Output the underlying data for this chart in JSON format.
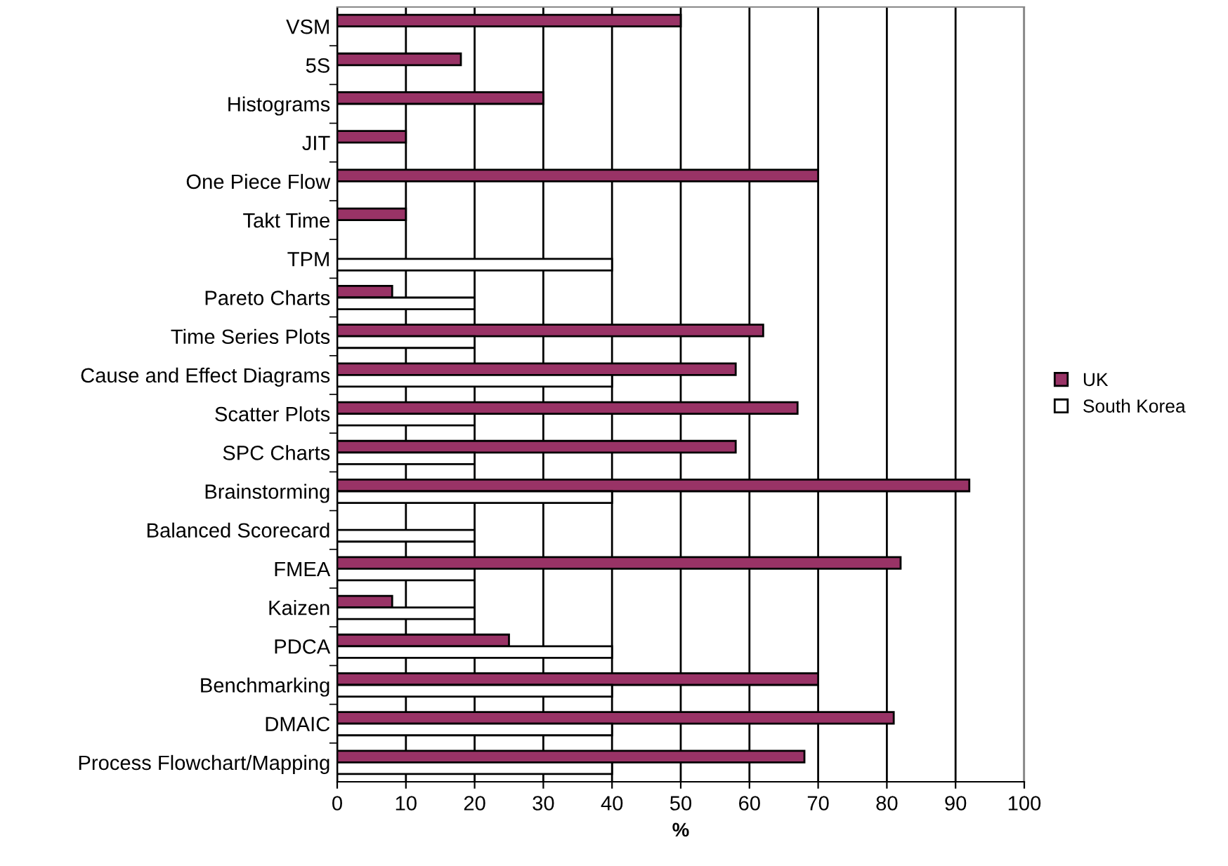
{
  "chart_data": {
    "type": "bar",
    "orientation": "horizontal",
    "xlabel": "%",
    "categories": [
      "VSM",
      "5S",
      "Histograms",
      "JIT",
      "One Piece Flow",
      "Takt Time",
      "TPM",
      "Pareto Charts",
      "Time Series Plots",
      "Cause and Effect Diagrams",
      "Scatter Plots",
      "SPC Charts",
      "Brainstorming",
      "Balanced Scorecard",
      "FMEA",
      "Kaizen",
      "PDCA",
      "Benchmarking",
      "DMAIC",
      "Process Flowchart/Mapping"
    ],
    "series": [
      {
        "name": "UK",
        "color": "#993366",
        "values": [
          50,
          18,
          30,
          10,
          70,
          10,
          null,
          8,
          62,
          58,
          67,
          58,
          92,
          null,
          82,
          8,
          25,
          70,
          81,
          68
        ]
      },
      {
        "name": "South Korea",
        "color": "#ffffff",
        "values": [
          null,
          null,
          null,
          null,
          null,
          null,
          40,
          20,
          20,
          40,
          20,
          20,
          40,
          20,
          20,
          20,
          40,
          40,
          40,
          40
        ]
      }
    ],
    "xlim": [
      0,
      100
    ],
    "xticks": [
      0,
      10,
      20,
      30,
      40,
      50,
      60,
      70,
      80,
      90,
      100
    ],
    "grid": "x",
    "legend": "right"
  }
}
